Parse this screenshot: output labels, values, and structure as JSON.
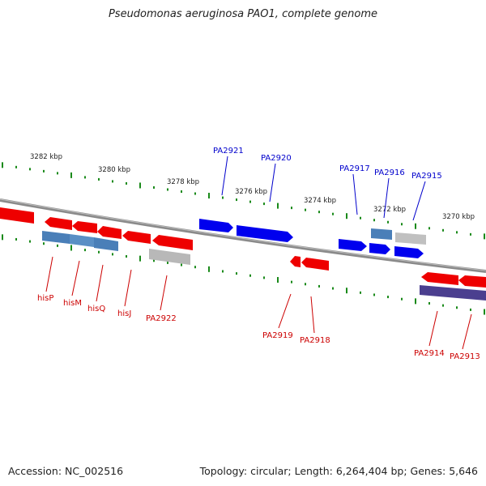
{
  "title": "Pseudomonas aeruginosa PAO1, complete genome",
  "footer": {
    "accession": "Accession: NC_002516",
    "topology": "Topology: circular; Length: 6,264,404 bp; Genes: 5,646"
  },
  "colors": {
    "forward_gene": "#0000ee",
    "reverse_gene": "#ee0000",
    "reverse_label": "#cc0000",
    "forward_label": "#0000cc",
    "rna_gene": "#4a7fb8",
    "pseudo_gene": "#b8b8b8",
    "dark_gene": "#4b3f8f",
    "tick": "#1a8a1a",
    "backbone": "#888888"
  },
  "kbp_labels": [
    {
      "text": "3282 kbp"
    },
    {
      "text": "3280 kbp"
    },
    {
      "text": "3278 kbp"
    },
    {
      "text": "3276 kbp"
    },
    {
      "text": "3274 kbp"
    },
    {
      "text": "3272 kbp"
    },
    {
      "text": "3270 kbp"
    }
  ],
  "forward_labels": [
    "PA2921",
    "PA2920",
    "PA2917",
    "PA2916",
    "PA2915"
  ],
  "reverse_labels": [
    "hisP",
    "hisM",
    "hisQ",
    "hisJ",
    "PA2922",
    "PA2919",
    "PA2918",
    "PA2914",
    "PA2913"
  ]
}
